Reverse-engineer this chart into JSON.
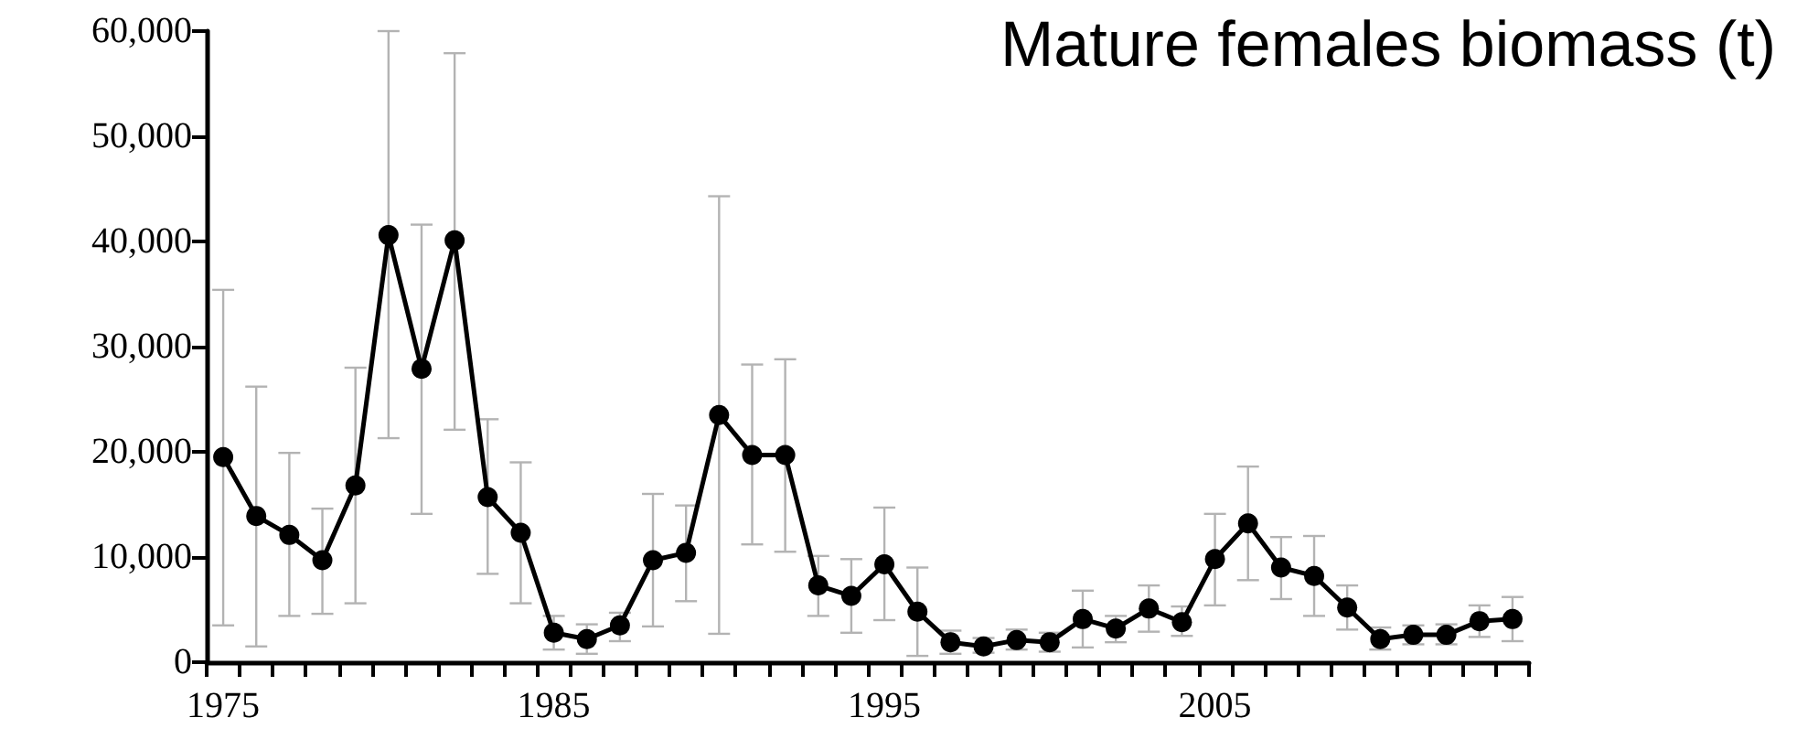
{
  "chart_data": {
    "type": "line",
    "title": "Mature females biomass (t)",
    "categories": [
      "1975",
      null,
      null,
      null,
      null,
      null,
      null,
      null,
      null,
      null,
      "1985",
      null,
      null,
      null,
      null,
      null,
      null,
      null,
      null,
      null,
      "1995",
      null,
      null,
      null,
      null,
      null,
      null,
      null,
      null,
      null,
      "2005",
      null,
      null,
      null,
      null,
      null,
      null,
      null,
      null,
      null
    ],
    "series": [
      {
        "color": "#000000",
        "values": [
          19500,
          13900,
          12100,
          9700,
          16800,
          40600,
          27900,
          40100,
          15700,
          12300,
          2800,
          2200,
          3500,
          9700,
          10400,
          23500,
          19700,
          19700,
          7300,
          6300,
          9300,
          4800,
          1900,
          1500,
          2100,
          1900,
          4100,
          3200,
          5100,
          3800,
          9800,
          13200,
          9000,
          8200,
          5200,
          2200,
          2600,
          2600,
          3900,
          4100
        ],
        "errors": [
          [
            3500,
            35400
          ],
          [
            1500,
            26200
          ],
          [
            4400,
            19900
          ],
          [
            4600,
            14600
          ],
          [
            5600,
            28000
          ],
          [
            21300,
            60000
          ],
          [
            14100,
            41600
          ],
          [
            22100,
            57900
          ],
          [
            8400,
            23100
          ],
          [
            5600,
            19000
          ],
          [
            1200,
            4400
          ],
          [
            800,
            3600
          ],
          [
            2000,
            4700
          ],
          [
            3400,
            16000
          ],
          [
            5800,
            14900
          ],
          [
            2700,
            44300
          ],
          [
            11200,
            28300
          ],
          [
            10500,
            28800
          ],
          [
            4400,
            10100
          ],
          [
            2800,
            9800
          ],
          [
            4000,
            14700
          ],
          [
            600,
            9000
          ],
          [
            800,
            3000
          ],
          [
            900,
            2300
          ],
          [
            1200,
            3100
          ],
          [
            1000,
            2800
          ],
          [
            1400,
            6800
          ],
          [
            1900,
            4400
          ],
          [
            2900,
            7300
          ],
          [
            2500,
            5300
          ],
          [
            5400,
            14100
          ],
          [
            7800,
            18600
          ],
          [
            6000,
            11900
          ],
          [
            4400,
            12000
          ],
          [
            3100,
            7300
          ],
          [
            1200,
            3300
          ],
          [
            1700,
            3500
          ],
          [
            1700,
            3600
          ],
          [
            2400,
            5400
          ],
          [
            2000,
            6200
          ]
        ]
      }
    ],
    "ylim": [
      0,
      60000
    ],
    "yticks": [
      0,
      {
        "value": 10000,
        "label": "10,000"
      },
      {
        "value": 20000,
        "label": "20,000"
      },
      {
        "value": 30000,
        "label": "30,000"
      },
      {
        "value": 40000,
        "label": "40,000"
      },
      {
        "value": 50000,
        "label": "50,000"
      },
      {
        "value": 60000,
        "label": "60,000"
      }
    ],
    "grid": false,
    "marker": "circle",
    "line_style": "solid"
  }
}
